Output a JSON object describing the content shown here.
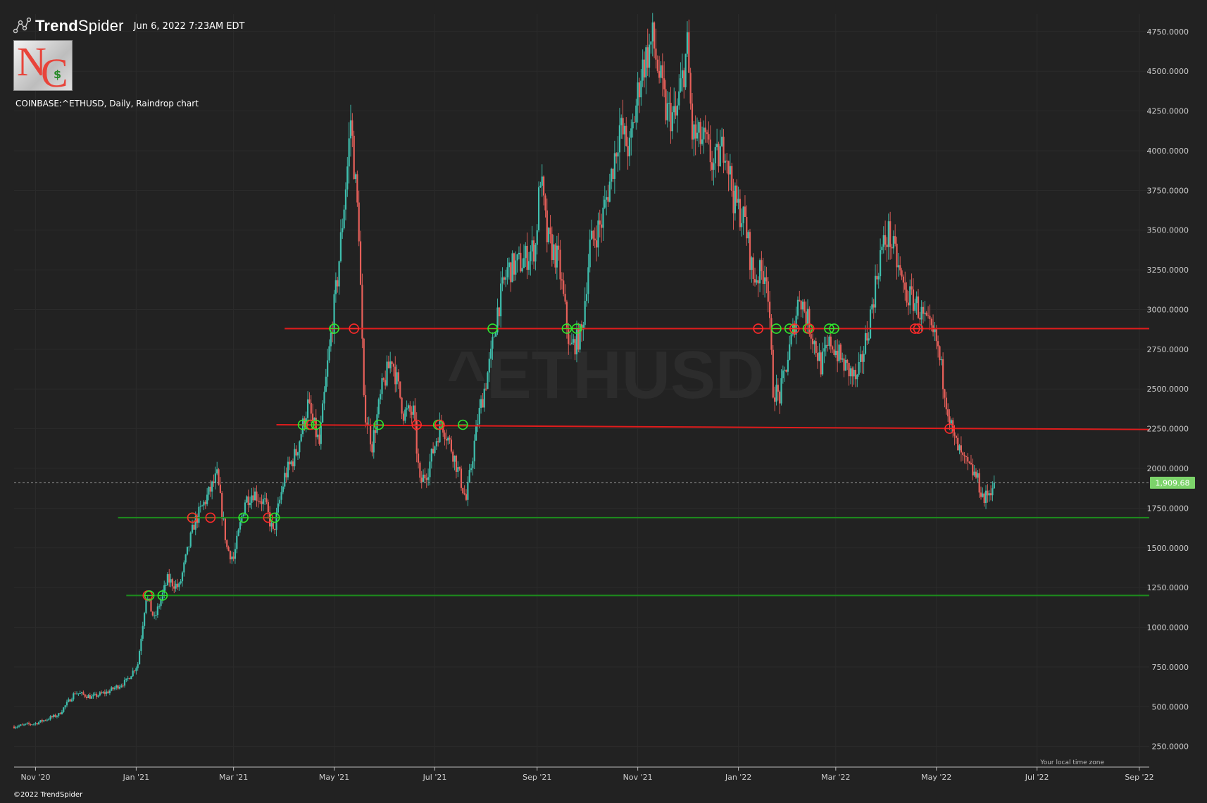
{
  "header": {
    "brand_light": "Trend",
    "brand_bold": "Spider",
    "timestamp": "Jun 6, 2022 7:23AM EDT",
    "symbol_line": "COINBASE:^ETHUSD, Daily, Raindrop chart",
    "logo_letter_1": "N",
    "logo_letter_2": "C",
    "logo_symbol": "$"
  },
  "footer": {
    "copyright": "©2022 TrendSpider",
    "timezone_note": "Your local time zone"
  },
  "watermark": "^ETHUSD",
  "colors": {
    "background": "#222222",
    "up": "#3fbfae",
    "down": "#e8605a",
    "resistance": "#e01c1c",
    "support": "#1d8c1d",
    "last_price_badge": "#7cd36a"
  },
  "chart_data": {
    "type": "candlestick",
    "title": "COINBASE:^ETHUSD, Daily, Raindrop chart",
    "ylim": [
      120,
      4860
    ],
    "xlim": [
      "2020-10-19",
      "2022-09-07"
    ],
    "y_ticks": [
      "250.0000",
      "500.0000",
      "750.0000",
      "1000.0000",
      "1250.0000",
      "1500.0000",
      "1750.0000",
      "2000.0000",
      "2250.0000",
      "2500.0000",
      "2750.0000",
      "3000.0000",
      "3250.0000",
      "3500.0000",
      "3750.0000",
      "4000.0000",
      "4250.0000",
      "4500.0000",
      "4750.0000"
    ],
    "x_ticks": [
      {
        "label": "Nov '20",
        "date": "2020-11-01"
      },
      {
        "label": "Jan '21",
        "date": "2021-01-01"
      },
      {
        "label": "Mar '21",
        "date": "2021-03-01"
      },
      {
        "label": "May '21",
        "date": "2021-05-01"
      },
      {
        "label": "Jul '21",
        "date": "2021-07-01"
      },
      {
        "label": "Sep '21",
        "date": "2021-09-01"
      },
      {
        "label": "Nov '21",
        "date": "2021-11-01"
      },
      {
        "label": "Jan '22",
        "date": "2022-01-01"
      },
      {
        "label": "Mar '22",
        "date": "2022-03-01"
      },
      {
        "label": "May '22",
        "date": "2022-05-01"
      },
      {
        "label": "Jul '22",
        "date": "2022-07-01"
      },
      {
        "label": "Sep '22",
        "date": "2022-09-01"
      }
    ],
    "last_price": {
      "value": 1909.68,
      "label": "1,909.68"
    },
    "price_path": [
      [
        "2020-10-19",
        375
      ],
      [
        "2020-11-01",
        395
      ],
      [
        "2020-11-15",
        450
      ],
      [
        "2020-11-25",
        590
      ],
      [
        "2020-12-05",
        560
      ],
      [
        "2020-12-15",
        595
      ],
      [
        "2020-12-26",
        660
      ],
      [
        "2021-01-02",
        770
      ],
      [
        "2021-01-07",
        1200
      ],
      [
        "2021-01-12",
        1050
      ],
      [
        "2021-01-20",
        1300
      ],
      [
        "2021-01-27",
        1250
      ],
      [
        "2021-02-05",
        1650
      ],
      [
        "2021-02-12",
        1800
      ],
      [
        "2021-02-19",
        1950
      ],
      [
        "2021-02-25",
        1500
      ],
      [
        "2021-03-01",
        1430
      ],
      [
        "2021-03-08",
        1800
      ],
      [
        "2021-03-13",
        1850
      ],
      [
        "2021-03-20",
        1780
      ],
      [
        "2021-03-25",
        1590
      ],
      [
        "2021-04-01",
        1950
      ],
      [
        "2021-04-08",
        2100
      ],
      [
        "2021-04-15",
        2400
      ],
      [
        "2021-04-22",
        2150
      ],
      [
        "2021-04-27",
        2650
      ],
      [
        "2021-05-03",
        3200
      ],
      [
        "2021-05-09",
        3900
      ],
      [
        "2021-05-11",
        4200
      ],
      [
        "2021-05-16",
        3500
      ],
      [
        "2021-05-19",
        2400
      ],
      [
        "2021-05-24",
        2150
      ],
      [
        "2021-05-30",
        2500
      ],
      [
        "2021-06-05",
        2700
      ],
      [
        "2021-06-12",
        2350
      ],
      [
        "2021-06-18",
        2350
      ],
      [
        "2021-06-22",
        1900
      ],
      [
        "2021-06-27",
        2000
      ],
      [
        "2021-07-05",
        2300
      ],
      [
        "2021-07-12",
        2100
      ],
      [
        "2021-07-20",
        1800
      ],
      [
        "2021-07-27",
        2300
      ],
      [
        "2021-08-04",
        2700
      ],
      [
        "2021-08-08",
        3000
      ],
      [
        "2021-08-14",
        3250
      ],
      [
        "2021-08-23",
        3300
      ],
      [
        "2021-08-31",
        3400
      ],
      [
        "2021-09-03",
        3850
      ],
      [
        "2021-09-07",
        3450
      ],
      [
        "2021-09-14",
        3300
      ],
      [
        "2021-09-21",
        2750
      ],
      [
        "2021-09-28",
        2850
      ],
      [
        "2021-10-03",
        3400
      ],
      [
        "2021-10-10",
        3550
      ],
      [
        "2021-10-16",
        3850
      ],
      [
        "2021-10-21",
        4150
      ],
      [
        "2021-10-27",
        4000
      ],
      [
        "2021-11-03",
        4500
      ],
      [
        "2021-11-10",
        4700
      ],
      [
        "2021-11-18",
        4250
      ],
      [
        "2021-11-24",
        4200
      ],
      [
        "2021-12-01",
        4650
      ],
      [
        "2021-12-04",
        4100
      ],
      [
        "2021-12-12",
        4050
      ],
      [
        "2021-12-17",
        3900
      ],
      [
        "2021-12-24",
        4050
      ],
      [
        "2021-12-29",
        3700
      ],
      [
        "2022-01-05",
        3550
      ],
      [
        "2022-01-10",
        3200
      ],
      [
        "2022-01-18",
        3250
      ],
      [
        "2022-01-22",
        2500
      ],
      [
        "2022-01-26",
        2450
      ],
      [
        "2022-02-02",
        2800
      ],
      [
        "2022-02-07",
        3100
      ],
      [
        "2022-02-13",
        2900
      ],
      [
        "2022-02-20",
        2650
      ],
      [
        "2022-02-26",
        2800
      ],
      [
        "2022-03-06",
        2650
      ],
      [
        "2022-03-14",
        2550
      ],
      [
        "2022-03-21",
        2900
      ],
      [
        "2022-03-28",
        3350
      ],
      [
        "2022-04-02",
        3480
      ],
      [
        "2022-04-07",
        3300
      ],
      [
        "2022-04-12",
        3100
      ],
      [
        "2022-04-18",
        3050
      ],
      [
        "2022-04-25",
        2900
      ],
      [
        "2022-05-01",
        2800
      ],
      [
        "2022-05-06",
        2500
      ],
      [
        "2022-05-11",
        2200
      ],
      [
        "2022-05-17",
        2050
      ],
      [
        "2022-05-25",
        1950
      ],
      [
        "2022-05-30",
        1800
      ],
      [
        "2022-06-05",
        1909.68
      ]
    ],
    "levels": [
      {
        "type": "resistance",
        "from": "2021-04-01",
        "to": "2022-09-07",
        "start": 2880,
        "end": 2880
      },
      {
        "type": "resistance",
        "from": "2021-03-27",
        "to": "2022-09-07",
        "start": 2275,
        "end": 2245
      },
      {
        "type": "support",
        "from": "2020-12-21",
        "to": "2022-09-07",
        "start": 1690,
        "end": 1690
      },
      {
        "type": "support",
        "from": "2020-12-26",
        "to": "2022-09-07",
        "start": 1200,
        "end": 1200
      }
    ],
    "touches": [
      {
        "date": "2021-01-08",
        "level": 1200,
        "kind": "red"
      },
      {
        "date": "2021-01-09",
        "level": 1200,
        "kind": "green"
      },
      {
        "date": "2021-01-17",
        "level": 1200,
        "kind": "green"
      },
      {
        "date": "2021-02-04",
        "level": 1690,
        "kind": "green"
      },
      {
        "date": "2021-02-04",
        "level": 1690,
        "kind": "red"
      },
      {
        "date": "2021-02-15",
        "level": 1690,
        "kind": "red"
      },
      {
        "date": "2021-03-07",
        "level": 1690,
        "kind": "green"
      },
      {
        "date": "2021-03-22",
        "level": 1690,
        "kind": "red"
      },
      {
        "date": "2021-03-26",
        "level": 1690,
        "kind": "green"
      },
      {
        "date": "2021-04-12",
        "level": 2275,
        "kind": "green"
      },
      {
        "date": "2021-04-16",
        "level": 2275,
        "kind": "green"
      },
      {
        "date": "2021-04-17",
        "level": 2275,
        "kind": "red"
      },
      {
        "date": "2021-04-20",
        "level": 2275,
        "kind": "green"
      },
      {
        "date": "2021-05-01",
        "level": 2880,
        "kind": "green"
      },
      {
        "date": "2021-05-13",
        "level": 2880,
        "kind": "red"
      },
      {
        "date": "2021-05-28",
        "level": 2275,
        "kind": "green"
      },
      {
        "date": "2021-06-20",
        "level": 2275,
        "kind": "red"
      },
      {
        "date": "2021-07-03",
        "level": 2275,
        "kind": "green"
      },
      {
        "date": "2021-07-04",
        "level": 2275,
        "kind": "red"
      },
      {
        "date": "2021-07-18",
        "level": 2275,
        "kind": "green"
      },
      {
        "date": "2021-08-05",
        "level": 2880,
        "kind": "green"
      },
      {
        "date": "2021-09-19",
        "level": 2880,
        "kind": "green"
      },
      {
        "date": "2021-09-25",
        "level": 2880,
        "kind": "green"
      },
      {
        "date": "2022-01-13",
        "level": 2880,
        "kind": "red"
      },
      {
        "date": "2022-01-24",
        "level": 2880,
        "kind": "green"
      },
      {
        "date": "2022-02-01",
        "level": 2880,
        "kind": "green"
      },
      {
        "date": "2022-02-04",
        "level": 2880,
        "kind": "red"
      },
      {
        "date": "2022-02-12",
        "level": 2880,
        "kind": "green"
      },
      {
        "date": "2022-02-13",
        "level": 2880,
        "kind": "red"
      },
      {
        "date": "2022-02-25",
        "level": 2880,
        "kind": "green"
      },
      {
        "date": "2022-02-28",
        "level": 2880,
        "kind": "green"
      },
      {
        "date": "2022-04-18",
        "level": 2880,
        "kind": "red"
      },
      {
        "date": "2022-04-20",
        "level": 2880,
        "kind": "red"
      },
      {
        "date": "2022-05-09",
        "level": 2250,
        "kind": "red"
      }
    ],
    "legend": "none",
    "grid": true
  }
}
